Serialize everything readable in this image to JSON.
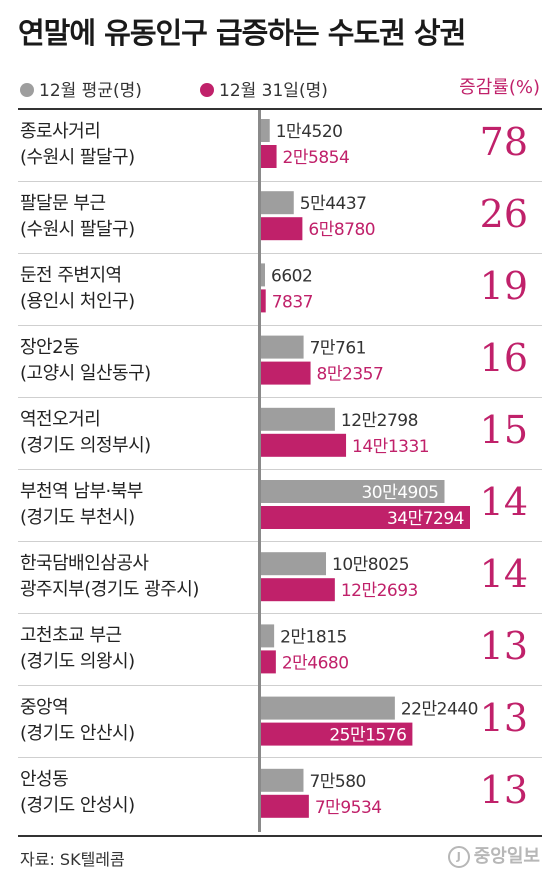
{
  "colors": {
    "avg": "#9e9e9e",
    "dec31": "#c0216a",
    "rate": "#c0216a"
  },
  "chart_data": {
    "type": "bar",
    "title": "연말에 유동인구 급증하는 수도권 상권",
    "legend": [
      "12월 평균(명)",
      "12월 31일(명)"
    ],
    "rate_header": "증감률(%)",
    "categories": [
      {
        "line1": "종로사거리",
        "line2": "(수원시 팔달구)"
      },
      {
        "line1": "팔달문 부근",
        "line2": "(수원시 팔달구)"
      },
      {
        "line1": "둔전 주변지역",
        "line2": "(용인시 처인구)"
      },
      {
        "line1": "장안2동",
        "line2": "(고양시 일산동구)"
      },
      {
        "line1": "역전오거리",
        "line2": "(경기도 의정부시)"
      },
      {
        "line1": "부천역 남부·북부",
        "line2": "(경기도 부천시)"
      },
      {
        "line1": "한국담배인삼공사",
        "line2": "광주지부(경기도 광주시)"
      },
      {
        "line1": "고천초교 부근",
        "line2": "(경기도 의왕시)"
      },
      {
        "line1": "중앙역",
        "line2": "(경기도 안산시)"
      },
      {
        "line1": "안성동",
        "line2": "(경기도 안성시)"
      }
    ],
    "series": [
      {
        "name": "12월 평균(명)",
        "values": [
          14520,
          54437,
          6602,
          70761,
          122798,
          304905,
          108025,
          21815,
          222440,
          70580
        ],
        "labels": [
          "1만4520",
          "5만4437",
          "6602",
          "7만761",
          "12만2798",
          "30만4905",
          "10만8025",
          "2만1815",
          "22만2440",
          "7만580"
        ]
      },
      {
        "name": "12월 31일(명)",
        "values": [
          25854,
          68780,
          7837,
          82357,
          141331,
          347294,
          122693,
          24680,
          251576,
          79534
        ],
        "labels": [
          "2만5854",
          "6만8780",
          "7837",
          "8만2357",
          "14만1331",
          "34만7294",
          "12만2693",
          "2만4680",
          "25만1576",
          "7만9534"
        ]
      }
    ],
    "rates": [
      "78",
      "26",
      "19",
      "16",
      "15",
      "14",
      "14",
      "13",
      "13",
      "13"
    ]
  },
  "source": "자료: SK텔레콤",
  "logo": {
    "mark": "J",
    "text": "중앙일보"
  }
}
